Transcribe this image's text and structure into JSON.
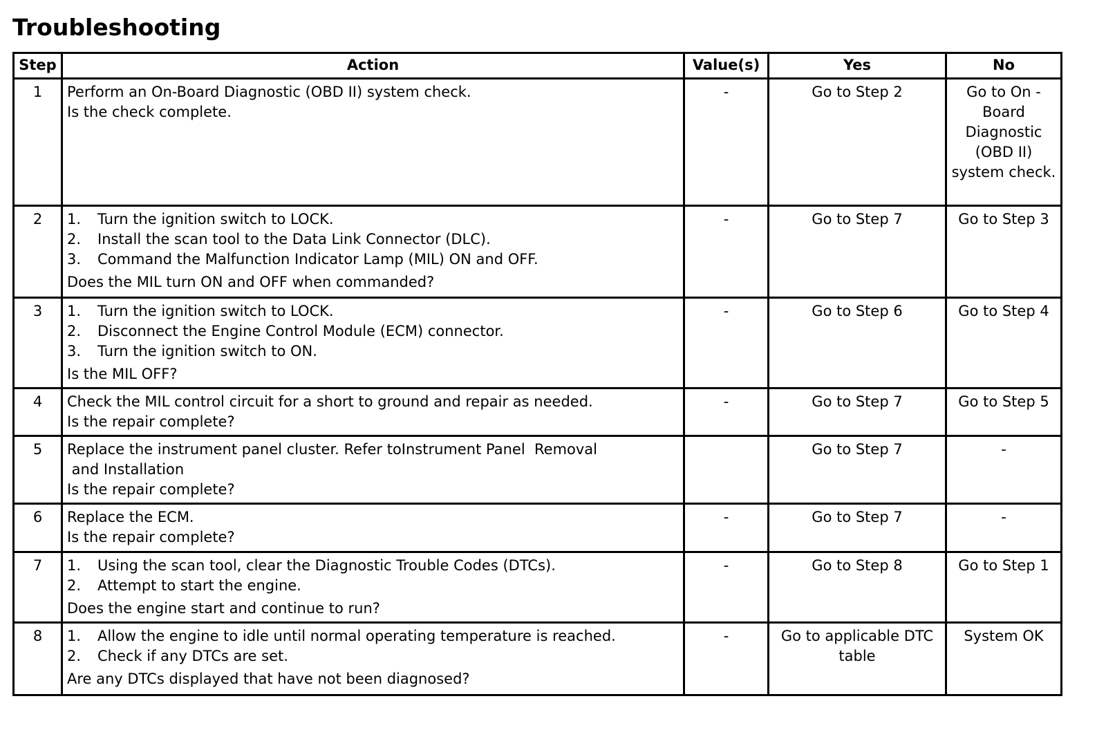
{
  "title": "Troubleshooting",
  "headers": {
    "step": "Step",
    "action": "Action",
    "values": "Value(s)",
    "yes": "Yes",
    "no": "No"
  },
  "rows": [
    {
      "step": "1",
      "text": [
        "Perform an On-Board Diagnostic (OBD II) system check.",
        "Is the check complete."
      ],
      "list": [],
      "question": "",
      "value": "-",
      "yes": "Go to Step 2",
      "no": "Go to On - Board Diagnostic (OBD II) system check."
    },
    {
      "step": "2",
      "text": [],
      "list": [
        "Turn the ignition switch to LOCK.",
        "Install the scan tool to the Data Link Connector (DLC).",
        "Command the Malfunction Indicator Lamp (MIL) ON and OFF."
      ],
      "question": "Does the MIL turn ON and OFF when commanded?",
      "value": "-",
      "yes": "Go to Step 7",
      "no": "Go to Step 3"
    },
    {
      "step": "3",
      "text": [],
      "list": [
        "Turn the ignition switch to LOCK.",
        "Disconnect the Engine Control Module (ECM) connector.",
        "Turn the ignition switch to ON."
      ],
      "question": "Is the MIL OFF?",
      "value": "-",
      "yes": "Go to Step 6",
      "no": "Go to Step 4"
    },
    {
      "step": "4",
      "text": [
        "Check the MIL control circuit for a short to ground and repair as needed.",
        "Is the repair complete?"
      ],
      "list": [],
      "question": "",
      "value": "-",
      "yes": "Go to Step 7",
      "no": "Go to Step 5"
    },
    {
      "step": "5",
      "text": [
        "Replace the instrument panel cluster. Refer toInstrument Panel  Removal",
        " and Installation",
        "Is the repair complete?"
      ],
      "list": [],
      "question": "",
      "value": "",
      "yes": "Go to Step 7",
      "no": "-"
    },
    {
      "step": "6",
      "text": [
        "Replace the ECM.",
        "Is the repair complete?"
      ],
      "list": [],
      "question": "",
      "value": "-",
      "yes": "Go to Step 7",
      "no": "-"
    },
    {
      "step": "7",
      "text": [],
      "list": [
        "Using the scan tool, clear the Diagnostic Trouble Codes (DTCs).",
        "Attempt to start the engine."
      ],
      "question": "Does the engine start and continue to run?",
      "value": "-",
      "yes": "Go to Step 8",
      "no": "Go to Step 1"
    },
    {
      "step": "8",
      "text": [],
      "list": [
        "Allow the engine to idle until normal operating temperature is reached.",
        "Check if any DTCs are set."
      ],
      "question": "Are any DTCs displayed that have not been diagnosed?",
      "value": "-",
      "yes": "Go to applicable DTC table",
      "no": "System OK"
    }
  ]
}
